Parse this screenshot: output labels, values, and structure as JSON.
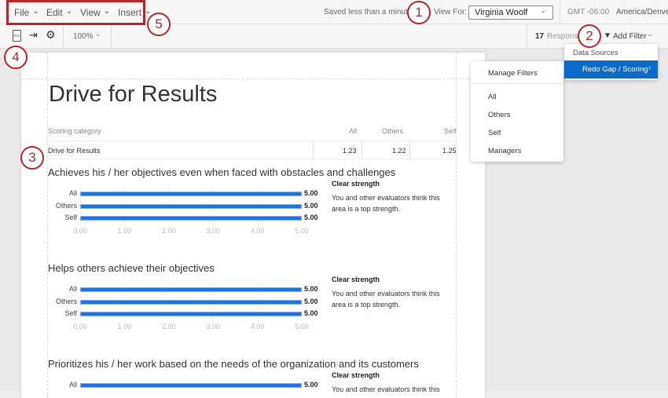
{
  "menu": {
    "items": [
      {
        "label": "File"
      },
      {
        "label": "Edit"
      },
      {
        "label": "View"
      },
      {
        "label": "Insert"
      }
    ]
  },
  "header": {
    "save_status": "Saved less than a minute",
    "view_for_label": "View For:",
    "view_for_value": "Virginia Woolf",
    "timezone_offset": "GMT -06:00",
    "timezone_name": "America/Denver"
  },
  "toolbar": {
    "zoom": "100%",
    "response_count": "17",
    "responses_label": "Responses",
    "add_filter": "Add Filter"
  },
  "submenu": {
    "header": "Data Sources",
    "selected": "Redo Gap / Scoring"
  },
  "filter_menu": {
    "items": [
      "Manage Filters",
      "All",
      "Others",
      "Self",
      "Managers"
    ]
  },
  "report": {
    "title": "Drive for Results",
    "table": {
      "headers": [
        "Scoring category",
        "All",
        "Others",
        "Self"
      ],
      "row": [
        "Drive for Results",
        "1.23",
        "1.22",
        "1.25"
      ]
    }
  },
  "chart_data": [
    {
      "type": "bar",
      "orientation": "horizontal",
      "title": "Achieves his / her objectives even when faced with obstacles and challenges",
      "categories": [
        "All",
        "Others",
        "Self"
      ],
      "values": [
        5.0,
        5.0,
        5.0
      ],
      "xlim": [
        0,
        5
      ],
      "ticks": [
        "0.00",
        "1.00",
        "2.00",
        "3.00",
        "4.00",
        "5.00"
      ],
      "value_labels": [
        "5.00",
        "5.00",
        "5.00"
      ],
      "note_title": "Clear strength",
      "note": "You and other evaluators think this area is a top strength."
    },
    {
      "type": "bar",
      "orientation": "horizontal",
      "title": "Helps others achieve their objectives",
      "categories": [
        "All",
        "Others",
        "Self"
      ],
      "values": [
        5.0,
        5.0,
        5.0
      ],
      "xlim": [
        0,
        5
      ],
      "ticks": [
        "0.00",
        "1.00",
        "2.00",
        "3.00",
        "4.00",
        "5.00"
      ],
      "value_labels": [
        "5.00",
        "5.00",
        "5.00"
      ],
      "note_title": "Clear strength",
      "note": "You and other evaluators think this area is a top strength."
    },
    {
      "type": "bar",
      "orientation": "horizontal",
      "title": "Prioritizes his / her work based on the needs of the organization and its customers",
      "categories": [
        "All"
      ],
      "values": [
        5.0
      ],
      "xlim": [
        0,
        5
      ],
      "value_labels": [
        "5.00"
      ],
      "note_title": "Clear strength",
      "note": "You and other evaluators think this"
    }
  ],
  "annotations": [
    "1",
    "2",
    "3",
    "4",
    "5"
  ],
  "colors": {
    "bar": "#1a73e8",
    "highlight": "#0b6bcb",
    "annotation": "#b5262f"
  }
}
